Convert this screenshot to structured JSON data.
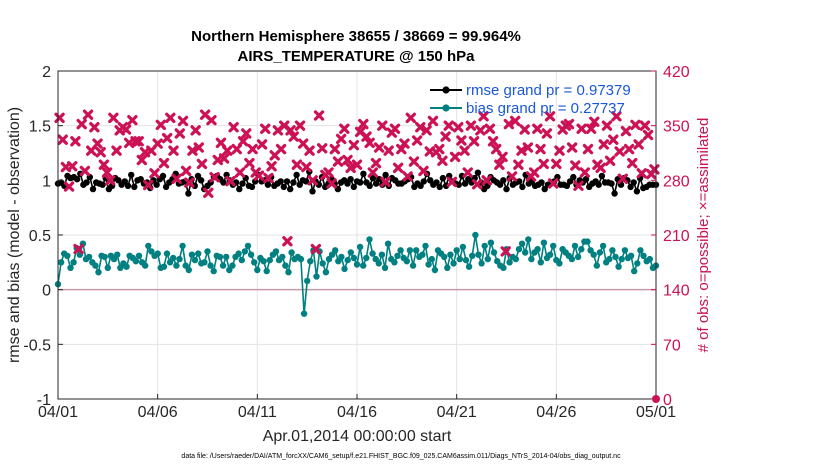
{
  "chart_data": {
    "type": "line",
    "title": "Northern Hemisphere 38655 / 38669 = 99.964%",
    "subtitle": "AIRS_TEMPERATURE @ 150 hPa",
    "xlabel": "Apr.01,2014 00:00:00 start",
    "ylabel": "rmse and bias (model - observation)",
    "ylabel_right": "# of obs: o=possible; ×=assimilated",
    "x_ticks": [
      "04/01",
      "04/06",
      "04/11",
      "04/16",
      "04/21",
      "04/26",
      "05/01"
    ],
    "x_range": [
      0,
      30
    ],
    "ylim": [
      -1,
      2
    ],
    "y_ticks": [
      "-1",
      "-0.5",
      "0",
      "0.5",
      "1",
      "1.5",
      "2"
    ],
    "ylim_right": [
      0,
      420
    ],
    "y_ticks_right": [
      "0",
      "70",
      "140",
      "210",
      "280",
      "350",
      "420"
    ],
    "grid": true,
    "legend_position": "top-right",
    "footnote": "data file: /Users/raeder/DAI/ATM_forcXX/CAM6_setup/f.e21.FHIST_BGC.f09_025.CAM6assim.011/Diags_NTrS_2014-04/obs_diag_output.nc",
    "series": [
      {
        "name": "rmse grand pr = 0.97379",
        "color": "#000000",
        "axis": "left",
        "values": [
          0.97,
          0.98,
          0.95,
          1.04,
          1.02,
          1.03,
          1.01,
          1.06,
          0.96,
          0.98,
          1.03,
          0.92,
          0.98,
          0.97,
          0.96,
          1.02,
          0.92,
          0.95,
          1.02,
          1.0,
          0.96,
          0.99,
          0.95,
          1.05,
          0.94,
          1.0,
          1.01,
          0.97,
          0.98,
          0.93,
          1.0,
          0.96,
          1.01,
          1.04,
          0.94,
          0.98,
          1.01,
          1.06,
          0.97,
          0.98,
          0.99,
          0.88,
          1.01,
          0.95,
          1.04,
          1.0,
          0.92,
          0.95,
          0.98,
          1.03,
          1.04,
          1.01,
          0.98,
          1.05,
          1.0,
          0.96,
          0.98,
          0.92,
          0.97,
          1.02,
          0.95,
          0.94,
          0.99,
          1.05,
          0.99,
          1.0,
          0.96,
          1.03,
          0.95,
          0.97,
          0.99,
          0.94,
          0.99,
          0.92,
          0.98,
          1.05,
          0.96,
          1.0,
          0.99,
          1.08,
          0.9,
          0.99,
          0.96,
          1.03,
          0.94,
          0.97,
          1.01,
          0.97,
          0.92,
          0.98,
          1.0,
          0.97,
          1.01,
          0.94,
          0.99,
          0.98,
          1.06,
          0.98,
          0.95,
          1.02,
          0.97,
          1.01,
          0.96,
          1.05,
          0.95,
          1.02,
          1.0,
          0.97,
          0.97,
          0.99,
          1.01,
          1.03,
          0.94,
          0.97,
          0.95,
          0.99,
          1.06,
          1.0,
          0.96,
          0.98,
          0.94,
          1.02,
          0.95,
          1.04,
          0.99,
          0.97,
          0.96,
          1.04,
          0.97,
          1.01,
          0.98,
          1.02,
          1.07,
          0.98,
          0.92,
          0.95,
          1.03,
          1.0,
          0.98,
          0.96,
          1.0,
          0.92,
          1.02,
          0.96,
          0.98,
          0.99,
          0.94,
          1.05,
          0.97,
          0.99,
          0.95,
          0.96,
          0.98,
          0.92,
          0.96,
          0.97,
          0.99,
          1.03,
          0.96,
          0.96,
          0.95,
          0.99,
          1.03,
          0.96,
          1.0,
          0.98,
          1.01,
          0.94,
          0.97,
          0.99,
          0.96,
          1.04,
          0.98,
          0.98,
          0.97,
          0.88,
          1.01,
          0.96,
          1.02,
          1.0,
          0.94,
          0.98,
          0.9,
          1.02,
          0.93,
          0.94,
          0.96,
          0.96,
          0.96
        ]
      },
      {
        "name": "bias grand pr = 0.27737",
        "color": "#008080",
        "axis": "left",
        "values": [
          0.05,
          0.25,
          0.33,
          0.31,
          0.2,
          0.25,
          0.38,
          0.32,
          0.42,
          0.28,
          0.3,
          0.25,
          0.22,
          0.16,
          0.31,
          0.3,
          0.2,
          0.31,
          0.28,
          0.32,
          0.2,
          0.24,
          0.21,
          0.31,
          0.29,
          0.26,
          0.31,
          0.25,
          0.22,
          0.4,
          0.35,
          0.31,
          0.33,
          0.2,
          0.21,
          0.33,
          0.25,
          0.29,
          0.22,
          0.28,
          0.4,
          0.22,
          0.18,
          0.32,
          0.27,
          0.33,
          0.24,
          0.25,
          0.35,
          0.22,
          0.17,
          0.31,
          0.3,
          0.22,
          0.3,
          0.18,
          0.22,
          0.3,
          0.33,
          0.27,
          0.35,
          0.4,
          0.32,
          0.25,
          0.18,
          0.29,
          0.26,
          0.17,
          0.27,
          0.32,
          0.35,
          0.27,
          0.3,
          0.22,
          0.16,
          0.34,
          0.28,
          0.3,
          0.28,
          -0.22,
          0.08,
          0.26,
          0.36,
          0.12,
          0.35,
          0.24,
          0.16,
          0.28,
          0.32,
          0.36,
          0.26,
          0.3,
          0.19,
          0.27,
          0.34,
          0.29,
          0.23,
          0.39,
          0.22,
          0.29,
          0.46,
          0.33,
          0.28,
          0.24,
          0.32,
          0.2,
          0.42,
          0.28,
          0.25,
          0.31,
          0.36,
          0.29,
          0.26,
          0.36,
          0.22,
          0.36,
          0.3,
          0.32,
          0.4,
          0.23,
          0.28,
          0.18,
          0.36,
          0.33,
          0.3,
          0.2,
          0.32,
          0.24,
          0.36,
          0.28,
          0.39,
          0.27,
          0.21,
          0.31,
          0.5,
          0.32,
          0.24,
          0.4,
          0.28,
          0.43,
          0.34,
          0.26,
          0.22,
          0.2,
          0.37,
          0.25,
          0.3,
          0.28,
          0.37,
          0.42,
          0.34,
          0.46,
          0.28,
          0.34,
          0.37,
          0.25,
          0.43,
          0.29,
          0.32,
          0.4,
          0.27,
          0.24,
          0.37,
          0.34,
          0.31,
          0.28,
          0.4,
          0.3,
          0.37,
          0.44,
          0.44,
          0.36,
          0.32,
          0.22,
          0.34,
          0.4,
          0.25,
          0.28,
          0.36,
          0.3,
          0.21,
          0.28,
          0.36,
          0.29,
          0.31,
          0.17,
          0.24,
          0.36,
          0.31,
          0.26,
          0.28,
          0.2,
          0.22
        ]
      },
      {
        "name": "possible obs",
        "color": "#cc1155",
        "axis": "right",
        "marker": "o",
        "values": []
      },
      {
        "name": "assimilated obs",
        "color": "#cc1155",
        "axis": "right",
        "marker": "x",
        "values": [
          360,
          332,
          297,
          272,
          298,
          330,
          192,
          352,
          292,
          364,
          318,
          348,
          327,
          316,
          300,
          290,
          280,
          360,
          318,
          344,
          348,
          345,
          328,
          357,
          330,
          330,
          306,
          316,
          274,
          318,
          289,
          327,
          351,
          302,
          334,
          360,
          318,
          282,
          340,
          356,
          292,
          277,
          318,
          344,
          322,
          301,
          364,
          264,
          357,
          284,
          306,
          328,
          308,
          318,
          279,
          348,
          320,
          290,
          330,
          340,
          302,
          320,
          290,
          286,
          326,
          346,
          283,
          298,
          312,
          344,
          320,
          350,
          202,
          344,
          336,
          300,
          350,
          327,
          297,
          318,
          280,
          192,
          363,
          321,
          287,
          290,
          276,
          320,
          304,
          333,
          346,
          306,
          296,
          325,
          300,
          342,
          352,
          336,
          328,
          290,
          302,
          322,
          350,
          278,
          318,
          341,
          346,
          296,
          320,
          327,
          285,
          360,
          304,
          331,
          348,
          292,
          344,
          317,
          356,
          316,
          320,
          305,
          336,
          350,
          278,
          310,
          348,
          331,
          318,
          290,
          350,
          330,
          275,
          344,
          362,
          280,
          346,
          330,
          320,
          300,
          310,
          189,
          352,
          285,
          356,
          300,
          318,
          345,
          322,
          285,
          290,
          346,
          320,
          301,
          340,
          362,
          276,
          301,
          318,
          345,
          350,
          352,
          322,
          299,
          273,
          346,
          290,
          320,
          346,
          355,
          300,
          296,
          326,
          350,
          305,
          332,
          362,
          317,
          282,
          343,
          320,
          302,
          351,
          326,
          289,
          350,
          338,
          288,
          294
        ]
      }
    ]
  }
}
